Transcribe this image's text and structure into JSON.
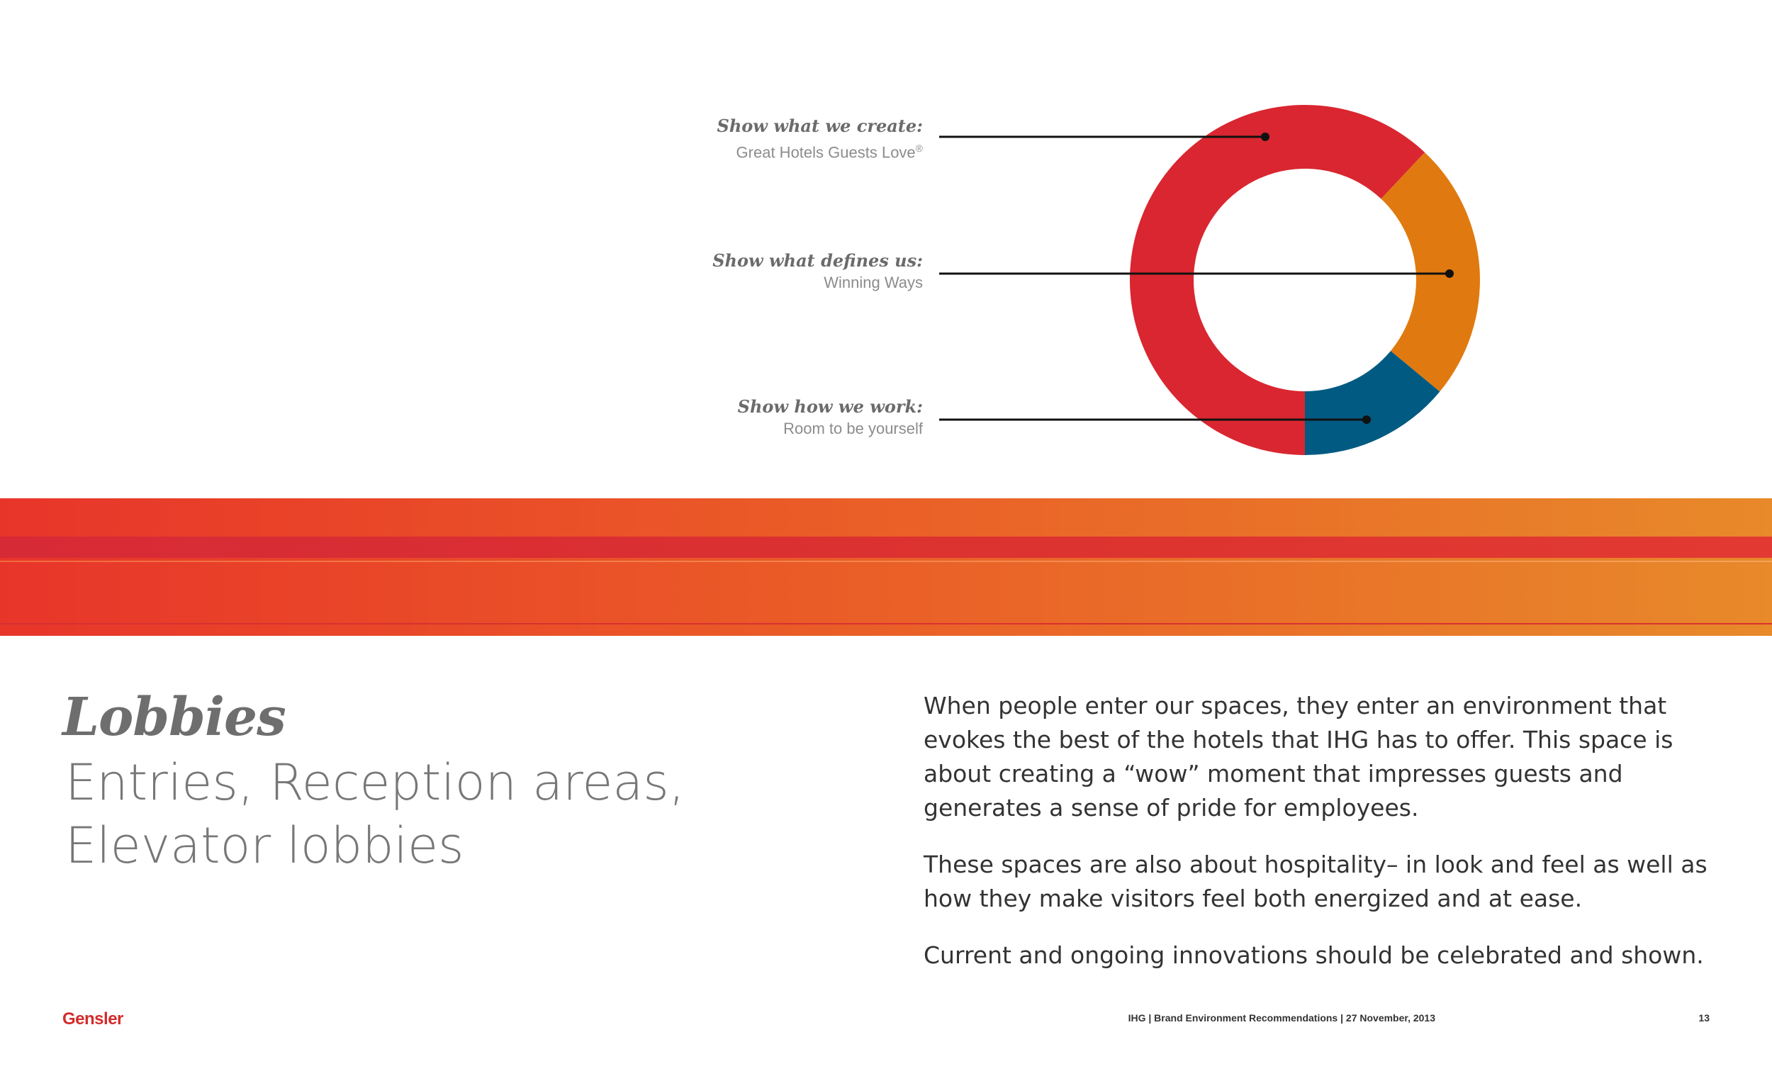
{
  "callouts": [
    {
      "heading": "Show what we create:",
      "text": "Great Hotels Guests Love",
      "mark": "®"
    },
    {
      "heading": "Show what defines us:",
      "text": "Winning Ways"
    },
    {
      "heading": "Show how we work:",
      "text": "Room to be yourself"
    }
  ],
  "chart_data": {
    "type": "pie",
    "segments": [
      {
        "label": "Show what we create",
        "share": 0.62,
        "color": "#d92630"
      },
      {
        "label": "Show what defines us",
        "share": 0.24,
        "color": "#e07a10"
      },
      {
        "label": "Show how we work",
        "share": 0.14,
        "color": "#005a82"
      }
    ]
  },
  "section": {
    "title": "Lobbies",
    "subtitle": "Entries, Reception areas, Elevator lobbies"
  },
  "body": {
    "p1": "When people enter our spaces, they enter an environment that evokes the best of the hotels that IHG has to offer. This space is about creating a “wow” moment that impresses guests and generates a sense of pride for employees.",
    "p2": "These spaces are also about hospitality– in look and feel as well as how they make visitors feel both energized and at ease.",
    "p3": "Current and ongoing innovations should be celebrated and shown."
  },
  "footer": {
    "logo": "Gensler",
    "doc": "IHG | Brand Environment Recommendations | 27 November, 2013",
    "page": "13"
  },
  "colors": {
    "band_start": "#e8352a",
    "band_end": "#e8892a",
    "logo": "#d52b2b"
  }
}
